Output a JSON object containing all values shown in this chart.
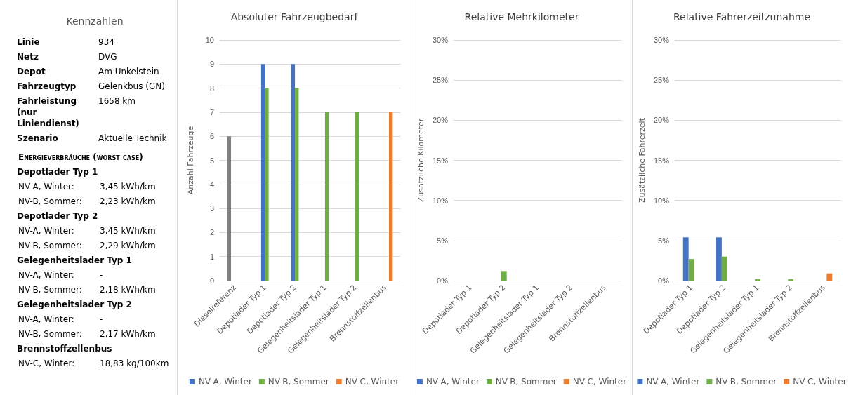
{
  "chart_data": [
    {
      "type": "other",
      "title": "Kennzahlen",
      "annotations": [
        "Linie",
        "934",
        "Netz",
        "DVG",
        "Depot",
        "Am Unkelstein",
        "Fahrzeugtyp",
        "Gelenkbus (GN)",
        "Fahrleistung\n(nur Liniendienst)",
        "1658 km",
        "Szenario",
        "Aktuelle Technik",
        "Energieverbräuche (worst case)",
        "Depotlader Typ 1",
        "NV-A, Winter:",
        "3,45 kWh/km",
        "NV-B, Sommer:",
        "2,23 kWh/km",
        "Depotlader Typ 2",
        "NV-A, Winter:",
        "3,45 kWh/km",
        "NV-B, Sommer:",
        "2,29 kWh/km",
        "Gelegenheitslader Typ 1",
        "NV-A, Winter:",
        "-",
        "NV-B, Sommer:",
        "2,18 kWh/km",
        "Gelegenheitslader Typ 2",
        "NV-A, Winter:",
        "-",
        "NV-B, Sommer:",
        "2,17 kWh/km",
        "Brennstoffzellenbus",
        "NV-C, Winter:",
        "18,83 kg/100km"
      ]
    },
    {
      "type": "bar",
      "title": "Absoluter Fahrzeugbedarf",
      "ylabel": "Anzahl Fahrzeuge",
      "categories": [
        "Dieselreferenz",
        "Depotlader Typ 1",
        "Depotlader Typ 2",
        "Gelegenheitslader Typ 1",
        "Gelegenheitslader Typ 2",
        "Brennstoffzellenbus"
      ],
      "series": [
        {
          "color": "#808080",
          "values": [
            6,
            null,
            null,
            null,
            null,
            null
          ]
        },
        {
          "name": "NV-A, Winter",
          "color": "#4472c4",
          "values": [
            null,
            9,
            9,
            null,
            null,
            null
          ]
        },
        {
          "name": "NV-B, Sommer",
          "color": "#70ad47",
          "values": [
            null,
            8,
            8,
            7,
            7,
            null
          ]
        },
        {
          "name": "NV-C, Winter",
          "color": "#ed7d31",
          "values": [
            null,
            null,
            null,
            null,
            null,
            7
          ]
        }
      ],
      "ylim": [
        0,
        10
      ],
      "yticks": [
        0,
        1,
        2,
        3,
        4,
        5,
        6,
        7,
        8,
        9,
        10
      ],
      "grid": "y",
      "legend": "bottom"
    },
    {
      "type": "bar",
      "title": "Relative Mehrkilometer",
      "ylabel": "Zusätzliche Kilometer",
      "categories": [
        "Depotlader Typ 1",
        "Depotlader Typ 2",
        "Gelegenheitslader Typ 1",
        "Gelegenheitslader Typ 2",
        "Brennstoffzellenbus"
      ],
      "series": [
        {
          "name": "NV-A, Winter",
          "color": "#4472c4",
          "values": [
            0,
            0,
            null,
            null,
            null
          ]
        },
        {
          "name": "NV-B, Sommer",
          "color": "#70ad47",
          "values": [
            0,
            1.2,
            0,
            0,
            null
          ]
        },
        {
          "name": "NV-C, Winter",
          "color": "#ed7d31",
          "values": [
            null,
            null,
            null,
            null,
            0
          ]
        }
      ],
      "ylim": [
        0,
        30
      ],
      "yticks": [
        {
          "value": 0,
          "label": "0%"
        },
        {
          "value": 5,
          "label": "5%"
        },
        {
          "value": 10,
          "label": "10%"
        },
        {
          "value": 15,
          "label": "15%"
        },
        {
          "value": 20,
          "label": "20%"
        },
        {
          "value": 25,
          "label": "25%"
        },
        {
          "value": 30,
          "label": "30%"
        }
      ],
      "grid": "y",
      "legend": "bottom"
    },
    {
      "type": "bar",
      "title": "Relative Fahrerzeitzunahme",
      "ylabel": "Zusätzliche Fahrerzeit",
      "categories": [
        "Depotlader Typ 1",
        "Depotlader Typ 2",
        "Gelegenheitslader Typ 1",
        "Gelegenheitslader Typ 2",
        "Brennstoffzellenbus"
      ],
      "series": [
        {
          "name": "NV-A, Winter",
          "color": "#4472c4",
          "values": [
            5.4,
            5.4,
            null,
            null,
            null
          ]
        },
        {
          "name": "NV-B, Sommer",
          "color": "#70ad47",
          "values": [
            2.7,
            3.0,
            0.2,
            0.2,
            null
          ]
        },
        {
          "name": "NV-C, Winter",
          "color": "#ed7d31",
          "values": [
            null,
            null,
            null,
            null,
            0.9
          ]
        }
      ],
      "ylim": [
        0,
        30
      ],
      "yticks": [
        {
          "value": 0,
          "label": "0%"
        },
        {
          "value": 5,
          "label": "5%"
        },
        {
          "value": 10,
          "label": "10%"
        },
        {
          "value": 15,
          "label": "15%"
        },
        {
          "value": 20,
          "label": "20%"
        },
        {
          "value": 25,
          "label": "25%"
        },
        {
          "value": 30,
          "label": "30%"
        }
      ],
      "grid": "y",
      "legend": "bottom"
    }
  ]
}
